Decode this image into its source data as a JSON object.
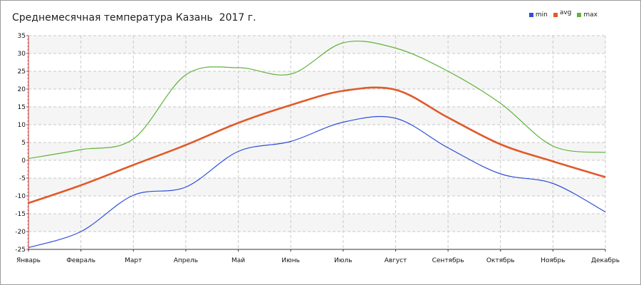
{
  "chart_data": {
    "type": "line",
    "title": "Среднемесячная температура Казань  2017 г.",
    "categories": [
      "Январь",
      "Февраль",
      "Март",
      "Апрель",
      "Май",
      "Июнь",
      "Июль",
      "Август",
      "Сентябрь",
      "Октябрь",
      "Ноябрь",
      "Декабрь"
    ],
    "series": [
      {
        "name": "min",
        "color": "#2e4fd6",
        "values": [
          -24.5,
          -20.0,
          -9.8,
          -7.5,
          2.5,
          5.3,
          10.7,
          11.8,
          3.5,
          -3.8,
          -6.5,
          -14.5
        ]
      },
      {
        "name": "avg",
        "color": "#e05a2a",
        "values": [
          -12.0,
          -7.0,
          -1.3,
          4.3,
          10.5,
          15.5,
          19.5,
          19.8,
          12.0,
          4.5,
          -0.3,
          -4.7
        ]
      },
      {
        "name": "max",
        "color": "#5fb33a",
        "values": [
          0.5,
          3.0,
          6.0,
          24.0,
          26.0,
          24.2,
          33.0,
          31.5,
          25.0,
          16.0,
          4.0,
          2.2
        ]
      }
    ],
    "yticks": [
      "35",
      "30",
      "25",
      "20",
      "15",
      "10",
      "5",
      "0",
      "-5",
      "-10",
      "-15",
      "-20",
      "-25"
    ],
    "ylim": [
      -26,
      35
    ],
    "grid": true,
    "legend_position": "top-right"
  }
}
